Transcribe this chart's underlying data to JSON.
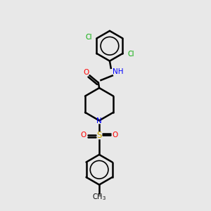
{
  "background_color": "#e8e8e8",
  "atom_colors": {
    "C": "#000000",
    "N": "#0000ff",
    "O": "#ff0000",
    "S": "#ccaa00",
    "Cl": "#00aa00",
    "H": "#000000"
  },
  "figsize": [
    3.0,
    3.0
  ],
  "dpi": 100
}
